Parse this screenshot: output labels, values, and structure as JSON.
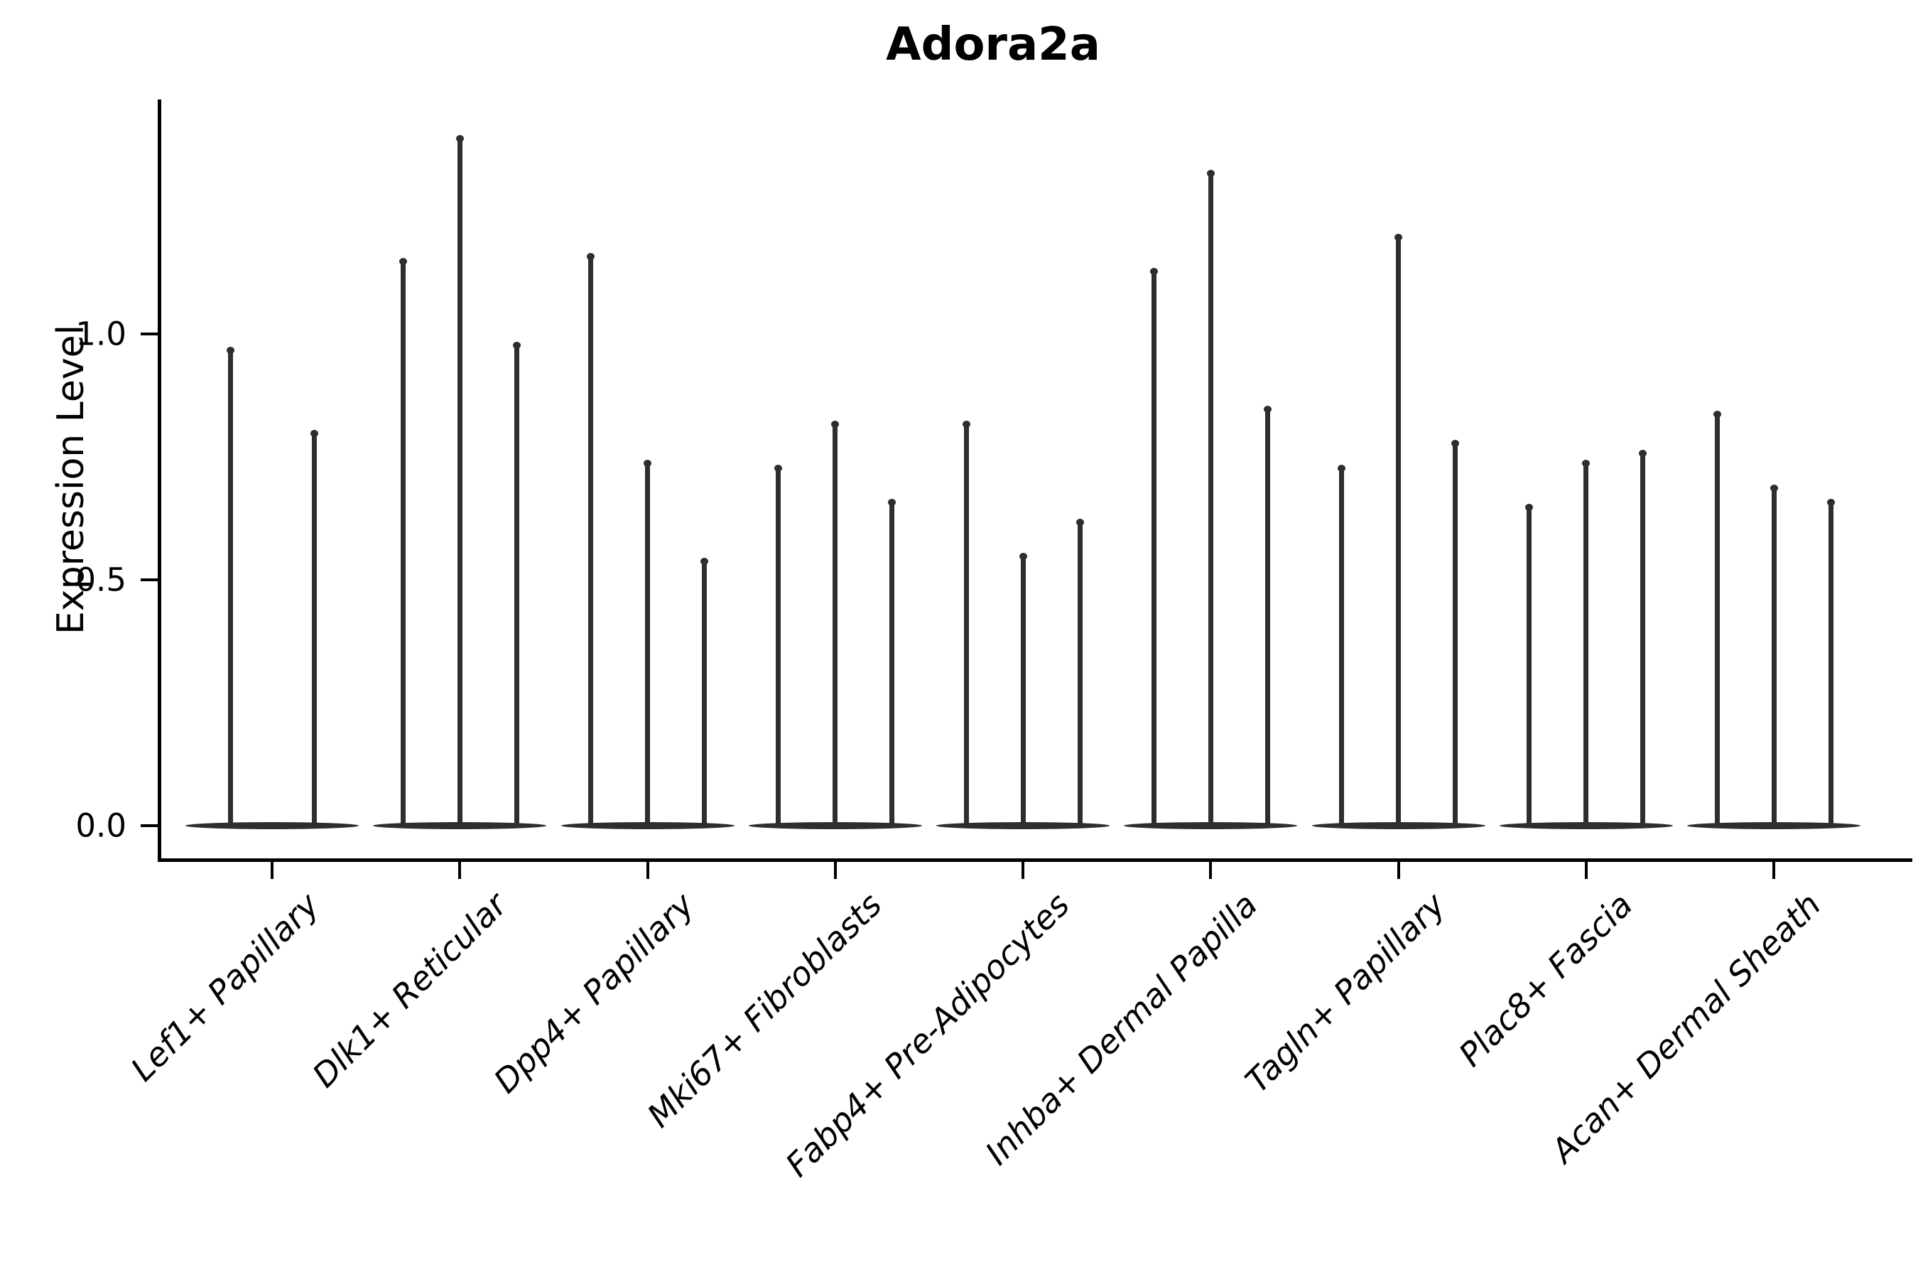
{
  "title": "Adora2a",
  "axis": {
    "ylabel": "Expression Level",
    "ytick_labels": [
      "0.0",
      "0.5",
      "1.0"
    ]
  },
  "colors": {
    "violin": "#2e2e2e",
    "axis": "#000000",
    "background": "#ffffff"
  },
  "chart_data": {
    "type": "violin",
    "title": "Adora2a",
    "xlabel": "",
    "ylabel": "Expression Level",
    "yticks": [
      0.0,
      0.5,
      1.0
    ],
    "ylim": [
      -0.07,
      1.48
    ],
    "grid": false,
    "legend": "none",
    "x_label_rotation_deg": 45,
    "description": "Thin spike violins; nearly all density at 0, spikes mark maximum expression per violin",
    "categories": [
      "Lef1+ Papillary",
      "Dlk1+ Reticular",
      "Dpp4+ Papillary",
      "Mki67+ Fibroblasts",
      "Fabp4+ Pre-Adipocytes",
      "Inhba+ Dermal Papilla",
      "Tagln+ Papillary",
      "Plac8+ Fascia",
      "Acan+ Dermal Sheath"
    ],
    "groups": [
      {
        "category": "Lef1+ Papillary",
        "spike_maxima": [
          0.97,
          0.8
        ]
      },
      {
        "category": "Dlk1+ Reticular",
        "spike_maxima": [
          1.15,
          1.4,
          0.98
        ]
      },
      {
        "category": "Dpp4+ Papillary",
        "spike_maxima": [
          1.16,
          0.74,
          0.54
        ]
      },
      {
        "category": "Mki67+ Fibroblasts",
        "spike_maxima": [
          0.73,
          0.82,
          0.66
        ]
      },
      {
        "category": "Fabp4+ Pre-Adipocytes",
        "spike_maxima": [
          0.82,
          0.55,
          0.62
        ]
      },
      {
        "category": "Inhba+ Dermal Papilla",
        "spike_maxima": [
          1.13,
          1.33,
          0.85
        ]
      },
      {
        "category": "Tagln+ Papillary",
        "spike_maxima": [
          0.73,
          1.2,
          0.78
        ]
      },
      {
        "category": "Plac8+ Fascia",
        "spike_maxima": [
          0.65,
          0.74,
          0.76
        ]
      },
      {
        "category": "Acan+ Dermal Sheath",
        "spike_maxima": [
          0.84,
          0.69,
          0.66
        ]
      }
    ]
  }
}
